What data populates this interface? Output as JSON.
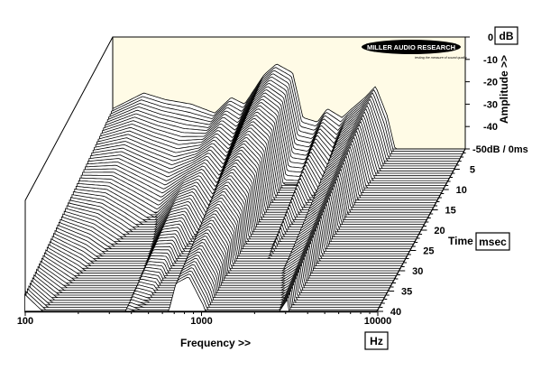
{
  "chart_data": {
    "type": "area",
    "title": "",
    "xlabel": "Frequency >>",
    "x_unit": "Hz",
    "ylabel": "Amplitude >>",
    "y_unit": "dB",
    "zlabel": "Time",
    "z_unit": "msec",
    "x_scale": "log",
    "xlim": [
      100,
      10000
    ],
    "ylim": [
      -50,
      0
    ],
    "zlim": [
      0,
      40
    ],
    "x_tick_labels": [
      "100",
      "1000",
      "10000"
    ],
    "y_tick_labels": [
      "0",
      "-10",
      "-20",
      "-30",
      "-40",
      "-50dB / 0ms"
    ],
    "z_tick_labels": [
      "5",
      "10",
      "15",
      "20",
      "25",
      "30",
      "35",
      "40"
    ],
    "slice_step_ms": 0.6,
    "decay": [
      {
        "freq_hz": 100,
        "level_db_at_0ms": -32,
        "decay_db_per_ms": 0.25
      },
      {
        "freq_hz": 150,
        "level_db_at_0ms": -25,
        "decay_db_per_ms": 0.75
      },
      {
        "freq_hz": 200,
        "level_db_at_0ms": -28,
        "decay_db_per_ms": 0.9
      },
      {
        "freq_hz": 280,
        "level_db_at_0ms": -30,
        "decay_db_per_ms": 1.2
      },
      {
        "freq_hz": 380,
        "level_db_at_0ms": -34,
        "decay_db_per_ms": 0.35
      },
      {
        "freq_hz": 470,
        "level_db_at_0ms": -27,
        "decay_db_per_ms": 0.6
      },
      {
        "freq_hz": 560,
        "level_db_at_0ms": -30,
        "decay_db_per_ms": 1.0
      },
      {
        "freq_hz": 720,
        "level_db_at_0ms": -17,
        "decay_db_per_ms": 0.5
      },
      {
        "freq_hz": 850,
        "level_db_at_0ms": -12,
        "decay_db_per_ms": 0.55
      },
      {
        "freq_hz": 1050,
        "level_db_at_0ms": -16,
        "decay_db_per_ms": 0.8
      },
      {
        "freq_hz": 1200,
        "level_db_at_0ms": -36,
        "decay_db_per_ms": 1.5
      },
      {
        "freq_hz": 1450,
        "level_db_at_0ms": -38,
        "decay_db_per_ms": 1.3
      },
      {
        "freq_hz": 1650,
        "level_db_at_0ms": -32,
        "decay_db_per_ms": 0.6
      },
      {
        "freq_hz": 2000,
        "level_db_at_0ms": -36,
        "decay_db_per_ms": 1.4
      },
      {
        "freq_hz": 2200,
        "level_db_at_0ms": -33,
        "decay_db_per_ms": 0.55
      },
      {
        "freq_hz": 2700,
        "level_db_at_0ms": -27,
        "decay_db_per_ms": 0.6
      },
      {
        "freq_hz": 3100,
        "level_db_at_0ms": -22,
        "decay_db_per_ms": 0.55
      },
      {
        "freq_hz": 3600,
        "level_db_at_0ms": -35,
        "decay_db_per_ms": 1.5
      },
      {
        "freq_hz": 4000,
        "level_db_at_0ms": -50,
        "decay_db_per_ms": 1.0
      },
      {
        "freq_hz": 10000,
        "level_db_at_0ms": -50,
        "decay_db_per_ms": 1.0
      }
    ],
    "grid": false,
    "legend": "none"
  },
  "logo": {
    "name": "MILLER AUDIO RESEARCH",
    "tagline": "testing the measure of sound quality"
  },
  "colors": {
    "back_panel": "#fffbe6",
    "slice_fill": "#ffffff",
    "slice_line": "#000000",
    "frame": "#000000"
  }
}
